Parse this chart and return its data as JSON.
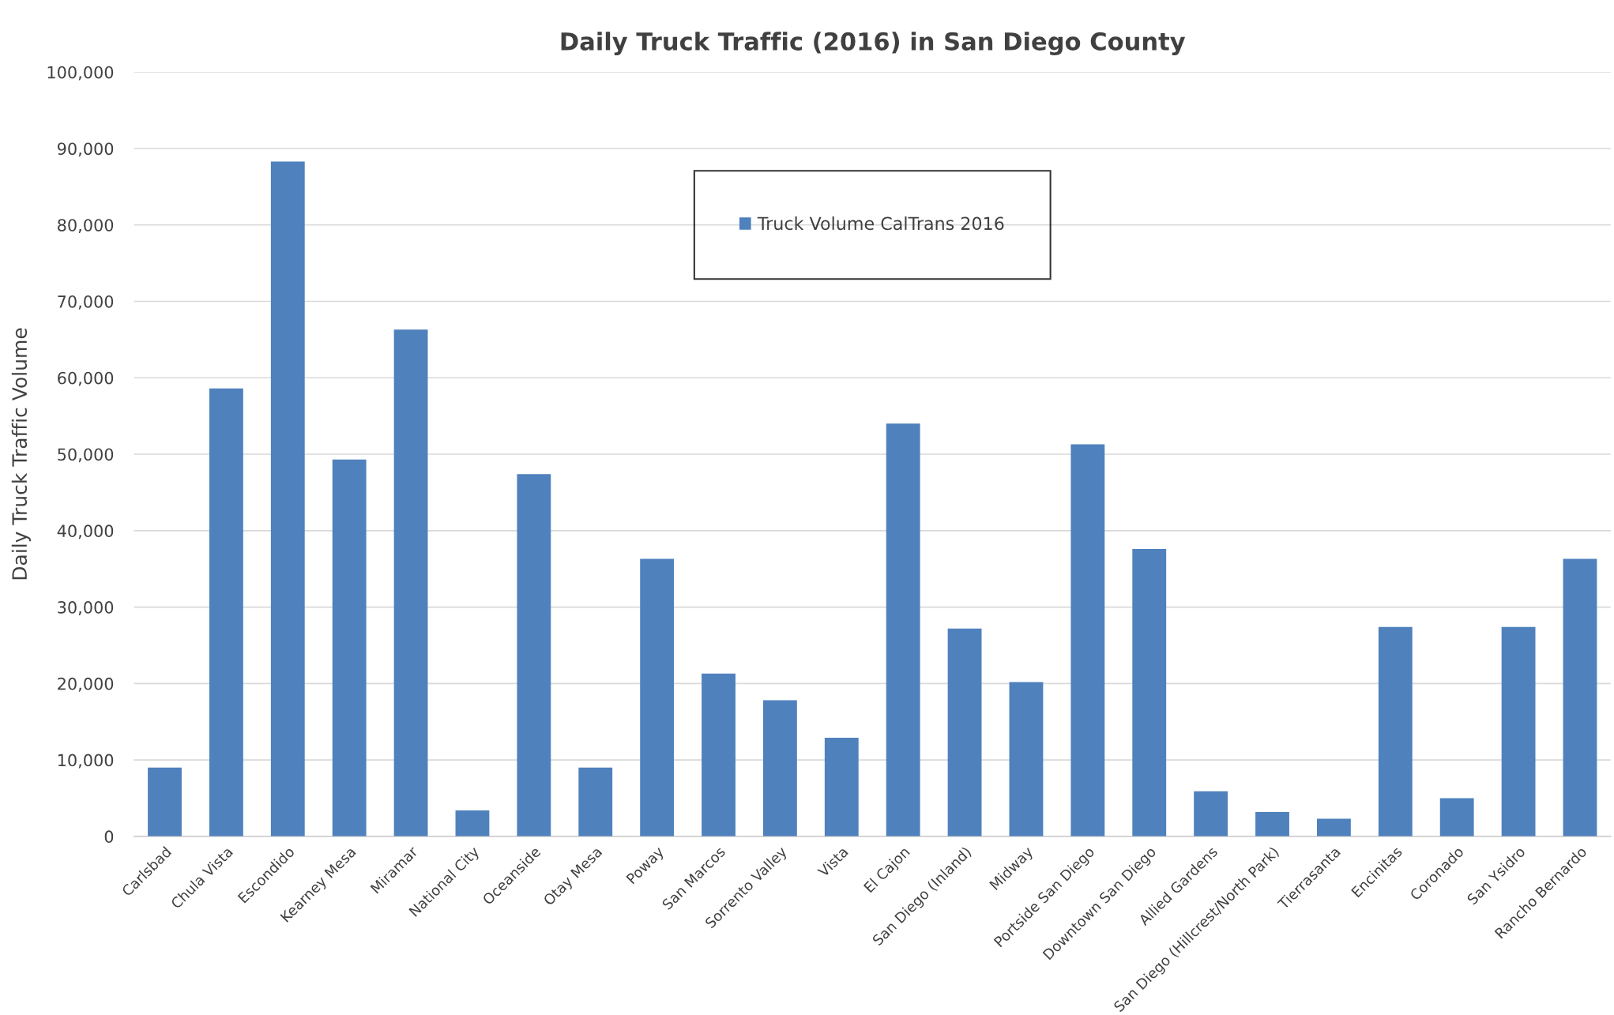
{
  "chart_data": {
    "type": "bar",
    "title": "Daily Truck Traffic (2016) in San Diego County",
    "ylabel": "Daily Truck Traffic Volume",
    "categories": [
      "Carlsbad",
      "Chula Vista",
      "Escondido",
      "Kearney Mesa",
      "Miramar",
      "National City",
      "Oceanside",
      "Otay Mesa",
      "Poway",
      "San Marcos",
      "Sorrento Valley",
      "Vista",
      "El Cajon",
      "San Diego (Inland)",
      "Midway",
      "Portside San Diego",
      "Downtown San Diego",
      "Allied Gardens",
      "San Diego (Hillcrest/North Park)",
      "Tierrasanta",
      "Encinitas",
      "Coronado",
      "San Ysidro",
      "Rancho Bernardo"
    ],
    "series": [
      {
        "name": "Truck Volume CalTrans 2016",
        "color": "#4f81bd",
        "values": [
          9000,
          58600,
          88300,
          49300,
          66300,
          3400,
          47400,
          9000,
          36300,
          21300,
          17800,
          12900,
          54000,
          27200,
          20200,
          51300,
          37600,
          5900,
          3200,
          2300,
          27400,
          5000,
          27400,
          36300
        ]
      }
    ],
    "ylim": [
      0,
      100000
    ],
    "yticks": [
      {
        "value": 0,
        "label": "0"
      },
      {
        "value": 10000,
        "label": "10,000"
      },
      {
        "value": 20000,
        "label": "20,000"
      },
      {
        "value": 30000,
        "label": "30,000"
      },
      {
        "value": 40000,
        "label": "40,000"
      },
      {
        "value": 50000,
        "label": "50,000"
      },
      {
        "value": 60000,
        "label": "60,000"
      },
      {
        "value": 70000,
        "label": "70,000"
      },
      {
        "value": 80000,
        "label": "80,000"
      },
      {
        "value": 90000,
        "label": "90,000"
      },
      {
        "value": 100000,
        "label": "100,000"
      }
    ],
    "grid": "y",
    "legend": "top"
  }
}
